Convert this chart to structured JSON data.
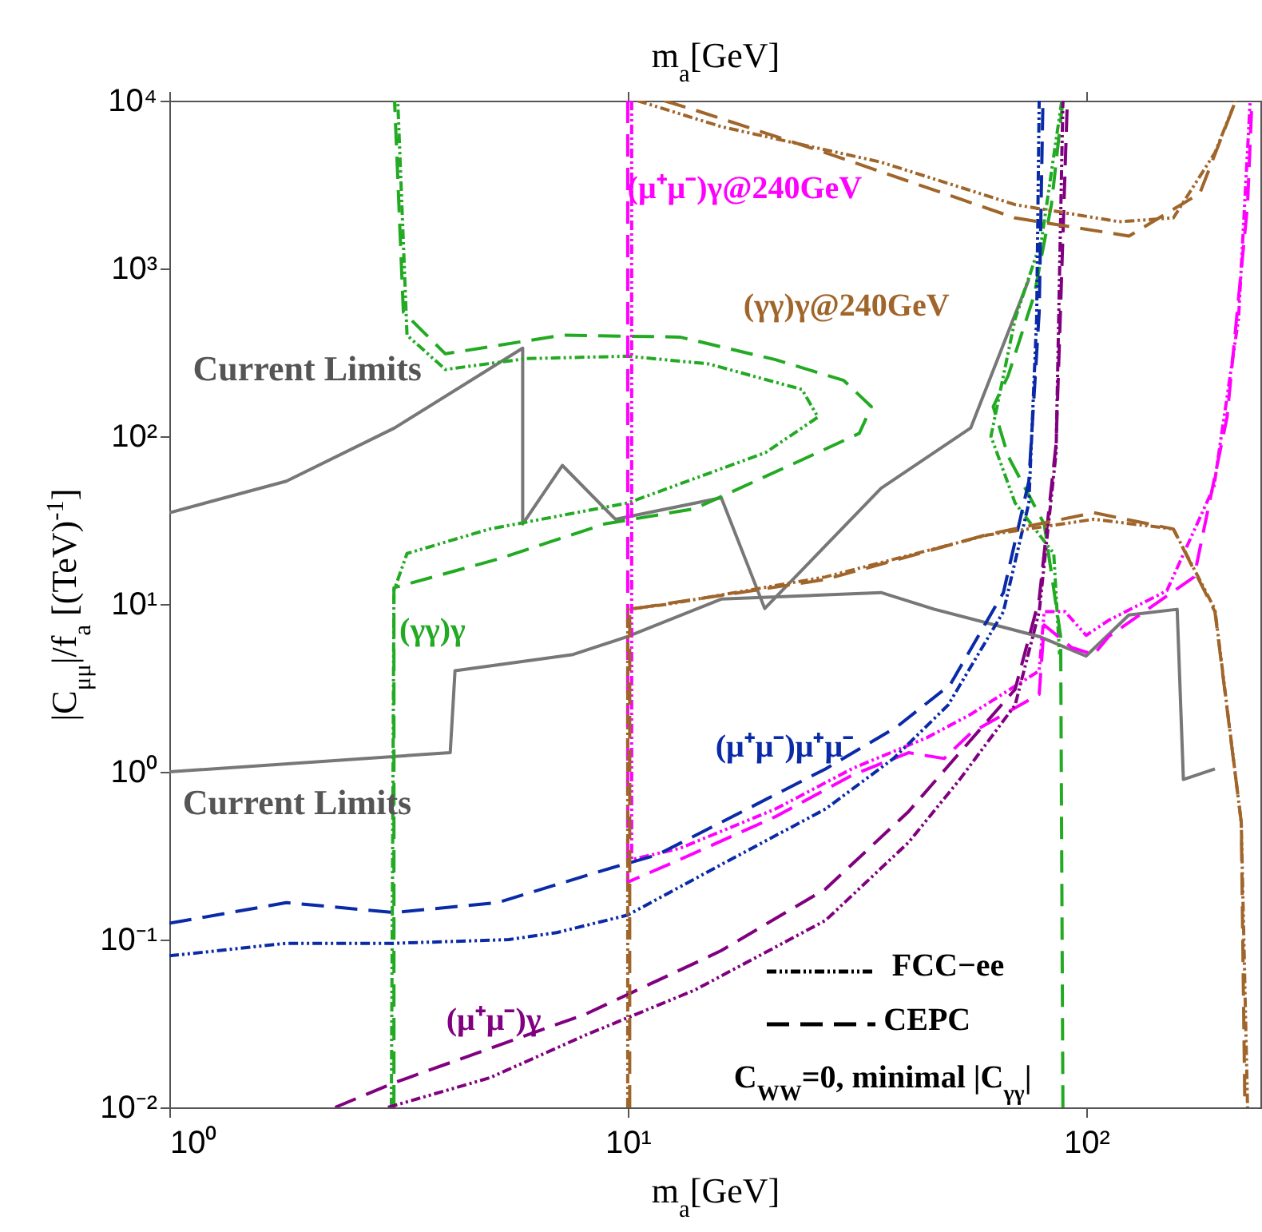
{
  "chart_data": {
    "type": "line",
    "xlabel": "m$_{a}$[GeV]",
    "x2label": "m$_{a}$[GeV]",
    "ylabel": "|C$_{μμ}$|/f$_{a}$ [(TeV)$^{-1}$]",
    "log": "xy",
    "xlim": [
      1,
      240
    ],
    "xticks": [
      {
        "value": 1,
        "label": "10⁰"
      },
      {
        "value": 10,
        "label": "10¹"
      },
      {
        "value": 100,
        "label": "10²"
      }
    ],
    "ylim": [
      0.01,
      10000
    ],
    "yticks": [
      {
        "value": 0.01,
        "label": "10⁻²"
      },
      {
        "value": 0.1,
        "label": "10⁻¹"
      },
      {
        "value": 1,
        "label": "10⁰"
      },
      {
        "value": 10,
        "label": "10¹"
      },
      {
        "value": 100,
        "label": "10²"
      },
      {
        "value": 1000,
        "label": "10³"
      },
      {
        "value": 10000,
        "label": "10⁴"
      }
    ],
    "grid": false,
    "marker": "none",
    "series": [
      {
        "color": "#777777",
        "line_style": "solid",
        "x": [
          1,
          1.8,
          3.1,
          5.9,
          5.9,
          7.2,
          9.4,
          16,
          19.9,
          35.7,
          56,
          75
        ],
        "values": [
          35,
          54,
          112,
          335,
          30,
          67,
          32,
          43,
          9.4,
          49,
          112,
          860
        ]
      },
      {
        "color": "#777777",
        "line_style": "solid",
        "x": [
          1,
          4.1,
          4.2,
          7.6,
          10,
          16,
          35.7,
          46.7,
          79,
          100,
          124,
          158,
          163,
          191
        ],
        "values": [
          1,
          1.3,
          4,
          5,
          6.4,
          10.7,
          11.7,
          9.3,
          6.4,
          4.9,
          8.6,
          9.3,
          0.9,
          1.04
        ]
      },
      {
        "color": "#22aa22",
        "line_style": "dashed",
        "x": [
          3.09,
          3.09,
          5.2,
          8.9,
          14,
          23.9,
          32,
          34,
          29.6,
          21,
          13,
          7.2,
          4,
          3.24,
          3.1
        ],
        "values": [
          0.01,
          12.5,
          18.5,
          30,
          37,
          72,
          104,
          150,
          215,
          286,
          390,
          400,
          310,
          550,
          10000
        ]
      },
      {
        "color": "#22aa22",
        "line_style": "dotted",
        "x": [
          3.05,
          3.09,
          3.3,
          5,
          10,
          20,
          26,
          24,
          15,
          10,
          6,
          4,
          3.3,
          3.15
        ],
        "values": [
          0.01,
          12,
          20,
          28,
          40,
          80,
          130,
          190,
          270,
          300,
          290,
          250,
          400,
          10000
        ]
      },
      {
        "color": "#22aa22",
        "line_style": "dashed",
        "x": [
          89,
          84,
          77,
          67.6,
          62.7,
          67.6,
          81,
          88,
          89
        ],
        "values": [
          10000,
          2400,
          690,
          230,
          150,
          76,
          30,
          6.4,
          0.01
        ]
      },
      {
        "color": "#22aa22",
        "line_style": "dotted",
        "x": [
          88.5,
          80,
          70,
          62,
          70,
          85,
          87.5
        ],
        "values": [
          10000,
          1500,
          500,
          100,
          40,
          20,
          5
        ]
      },
      {
        "color": "#ff00ff",
        "line_style": "dashed",
        "x": [
          10,
          10,
          13,
          21,
          31,
          41,
          49,
          56,
          79,
          81,
          93,
          104,
          112,
          172,
          203,
          225,
          230
        ],
        "values": [
          10000,
          0.22,
          0.3,
          0.54,
          0.96,
          1.3,
          1.2,
          1.7,
          2.9,
          7.5,
          5.5,
          5,
          6.4,
          14.5,
          130,
          2400,
          10000
        ]
      },
      {
        "color": "#ff00ff",
        "line_style": "dotted",
        "x": [
          10.2,
          10.2,
          13,
          21,
          31,
          45,
          56,
          79,
          81,
          90,
          100,
          112,
          150,
          190,
          215,
          228
        ],
        "values": [
          10000,
          0.3,
          0.35,
          0.6,
          1.05,
          1.6,
          2.2,
          4,
          9,
          9,
          6.5,
          8,
          12,
          50,
          500,
          10000
        ]
      },
      {
        "color": "#0a2aa8",
        "line_style": "dashed",
        "x": [
          1,
          1.8,
          3.09,
          5.2,
          8.9,
          11.6,
          16,
          27,
          38.6,
          50.5,
          66,
          75,
          79,
          80.5
        ],
        "values": [
          0.125,
          0.166,
          0.145,
          0.166,
          0.26,
          0.32,
          0.5,
          1.04,
          1.85,
          3.3,
          11.7,
          54,
          550,
          10000
        ]
      },
      {
        "color": "#0a2aa8",
        "line_style": "dotted",
        "x": [
          1,
          1.8,
          3.1,
          5.5,
          7,
          10,
          16,
          27,
          38,
          50,
          66,
          75,
          78,
          79
        ],
        "values": [
          0.08,
          0.095,
          0.095,
          0.1,
          0.11,
          0.14,
          0.28,
          0.6,
          1.2,
          2.5,
          9,
          40,
          500,
          10000
        ]
      },
      {
        "color": "#800080",
        "line_style": "dashed",
        "x": [
          2.3,
          3.09,
          8.1,
          14.4,
          16,
          27,
          41,
          53,
          70,
          79,
          86,
          91
        ],
        "values": [
          0.01,
          0.014,
          0.036,
          0.075,
          0.086,
          0.2,
          0.58,
          1.3,
          3.1,
          10.7,
          90,
          10000
        ]
      },
      {
        "color": "#800080",
        "line_style": "dotted",
        "x": [
          3,
          5,
          8.1,
          14,
          27,
          41,
          53,
          70,
          79,
          86,
          89
        ],
        "values": [
          0.01,
          0.015,
          0.027,
          0.05,
          0.13,
          0.38,
          0.9,
          2.5,
          9,
          80,
          10000
        ]
      },
      {
        "color": "#a0652a",
        "line_style": "dotted",
        "x": [
          10,
          10,
          12.3,
          27,
          61,
          104,
          155,
          191,
          218,
          225
        ],
        "values": [
          0.01,
          9.3,
          10,
          14.5,
          25.8,
          32,
          28,
          9.3,
          0.5,
          0.01
        ]
      },
      {
        "color": "#a0652a",
        "line_style": "dashed",
        "x": [
          10.1,
          10.1,
          27,
          61,
          104,
          155,
          191,
          218,
          222
        ],
        "values": [
          0.01,
          9.3,
          14,
          26,
          35,
          28,
          9,
          0.5,
          0.01
        ]
      },
      {
        "color": "#a0652a",
        "line_style": "dotted",
        "x": [
          10.5,
          16,
          35.7,
          70,
          118,
          155,
          191,
          212
        ],
        "values": [
          10000,
          7000,
          4300,
          2400,
          1900,
          2000,
          4900,
          10000
        ]
      },
      {
        "color": "#a0652a",
        "line_style": "dashed",
        "x": [
          12,
          14,
          27,
          70,
          124,
          177,
          212
        ],
        "values": [
          10000,
          8800,
          4900,
          2000,
          1560,
          2800,
          10000
        ]
      }
    ],
    "annotations": [
      "Current Limits",
      "Current Limits",
      "(γγ)γ",
      "(μ⁺μ⁻)γ@240GeV",
      "(γγ)γ@240GeV",
      "(μ⁺μ⁻)μ⁺μ⁻",
      "(μ⁺μ⁻)γ",
      "FCC−ee",
      "CEPC",
      "C$_{WW}$=0, minimal |C$_{γγ}$|"
    ]
  }
}
